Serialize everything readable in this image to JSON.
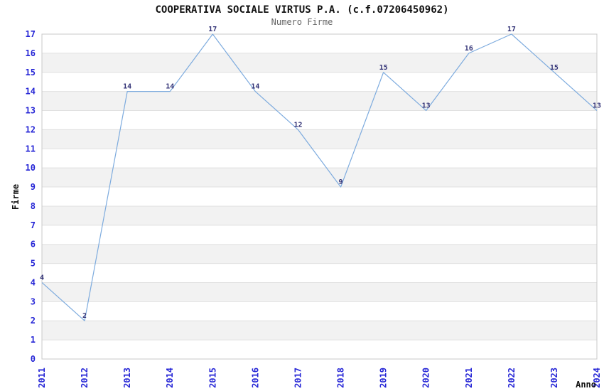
{
  "chart_data": {
    "type": "line",
    "title": "COOPERATIVA SOCIALE VIRTUS P.A. (c.f.07206450962)",
    "subtitle": "Numero Firme",
    "xlabel": "Anno",
    "ylabel": "Firme",
    "categories": [
      "2011",
      "2012",
      "2013",
      "2014",
      "2015",
      "2016",
      "2017",
      "2018",
      "2019",
      "2020",
      "2021",
      "2022",
      "2023",
      "2024"
    ],
    "values": [
      4,
      2,
      14,
      14,
      17,
      14,
      12,
      9,
      15,
      13,
      16,
      17,
      15,
      13
    ],
    "series_name": "Numero Firme",
    "ylim": [
      0,
      17
    ],
    "ytick_step": 1,
    "legend": "none",
    "point_labels": true,
    "grid": "horizontal alternating bands",
    "colors": {
      "line": "#7dabde",
      "axis_tick_label": "#2626d6",
      "point_label": "#333377",
      "band": "#f2f2f2",
      "grid": "#e0e0e0",
      "border": "#c8c8c8",
      "title": "#111111",
      "subtitle": "#666666",
      "axis_label": "#111111",
      "background": "#ffffff"
    }
  }
}
